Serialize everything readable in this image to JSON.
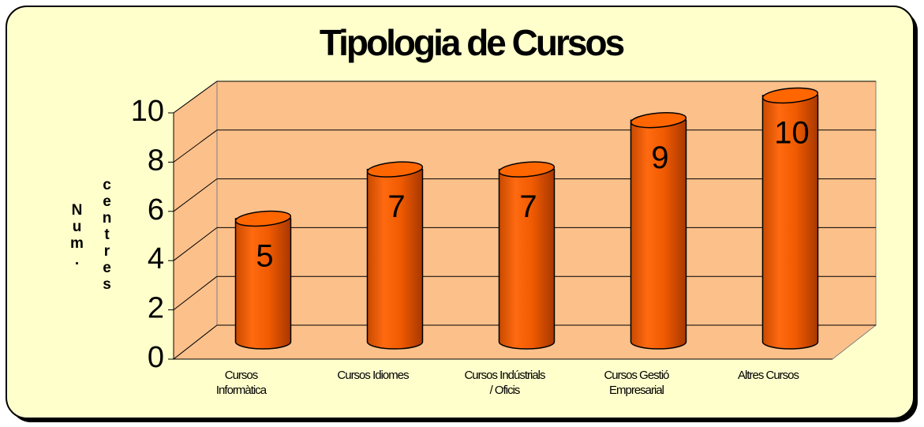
{
  "chart_data": {
    "type": "bar3d",
    "title": "Tipologia de Cursos",
    "ylabel": "Num. centres",
    "categories": [
      "Cursos\nInformàtica",
      "Cursos Idiomes",
      "Cursos Indústrials\n/ Oficis",
      "Cursos Gestió\nEmpresarial",
      "Altres Cursos"
    ],
    "values": [
      5,
      7,
      7,
      9,
      10
    ],
    "color": "#ff6600",
    "ylim": [
      0,
      10
    ],
    "yticks": [
      0,
      2,
      4,
      6,
      8,
      10
    ],
    "grid": true
  }
}
